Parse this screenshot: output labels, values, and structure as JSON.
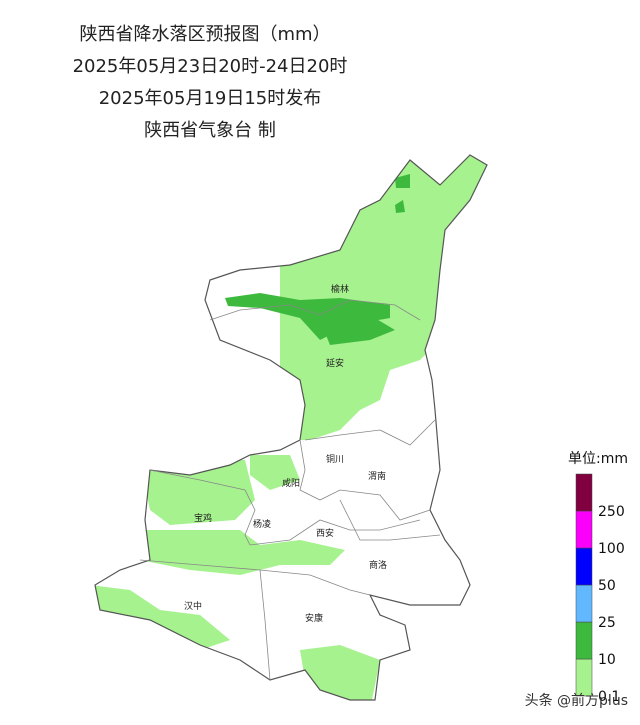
{
  "header": {
    "title": "陕西省降水落区预报图（mm）",
    "period": "2025年05月23日20时-24日20时",
    "issued": "2025年05月19日15时发布",
    "publisher": "陕西省气象台 制"
  },
  "cities": [
    {
      "label": "榆林"
    },
    {
      "label": "延安"
    },
    {
      "label": "铜川"
    },
    {
      "label": "渭南"
    },
    {
      "label": "咸阳"
    },
    {
      "label": "宝鸡"
    },
    {
      "label": "杨凌"
    },
    {
      "label": "西安"
    },
    {
      "label": "商洛"
    },
    {
      "label": "汉中"
    },
    {
      "label": "安康"
    }
  ],
  "legend": {
    "unit": "单位:mm",
    "levels": [
      {
        "label": "0.1",
        "color": "#a6f28f"
      },
      {
        "label": "10",
        "color": "#3dba3d"
      },
      {
        "label": "25",
        "color": "#61b8ff"
      },
      {
        "label": "50",
        "color": "#0000fe"
      },
      {
        "label": "100",
        "color": "#fa00fa"
      },
      {
        "label": "250",
        "color": "#800040"
      }
    ]
  },
  "watermark": "头条 @前方plus"
}
